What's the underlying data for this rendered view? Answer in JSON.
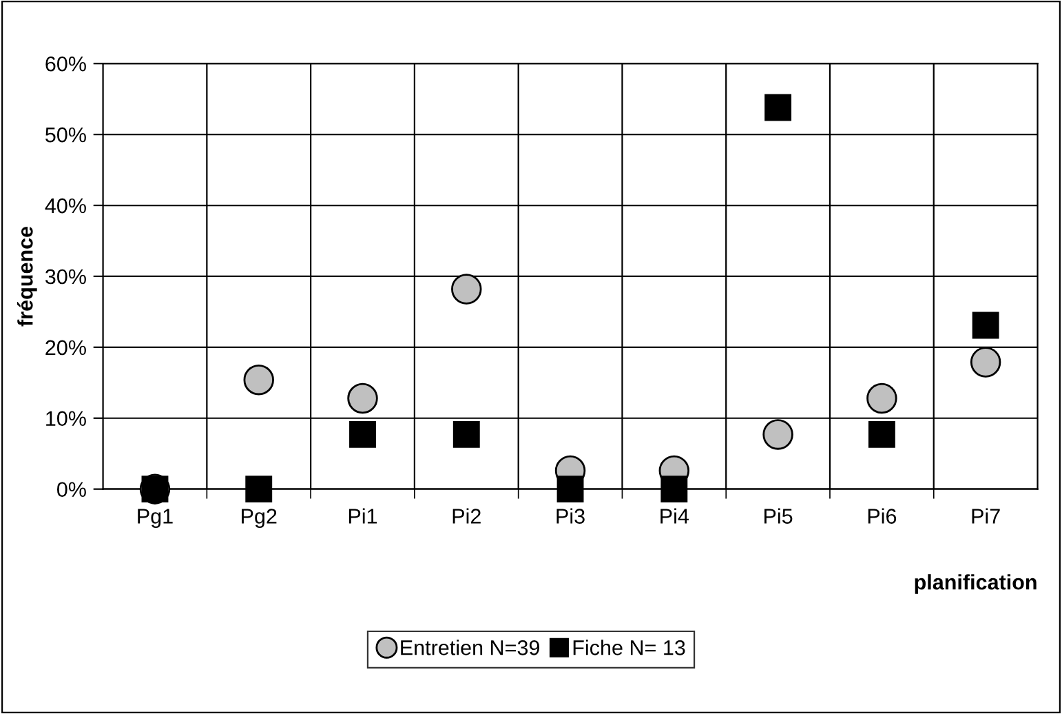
{
  "chart_data": {
    "type": "scatter",
    "xlabel": "planification",
    "ylabel": "fréquence",
    "categories": [
      "Pg1",
      "Pg2",
      "Pi1",
      "Pi2",
      "Pi3",
      "Pi4",
      "Pi5",
      "Pi6",
      "Pi7"
    ],
    "series": [
      {
        "name": "Entretien N=39",
        "color": "#c0c0c0",
        "marker": "circle",
        "values": [
          0,
          15.4,
          12.8,
          28.2,
          2.6,
          2.6,
          7.7,
          12.8,
          17.9
        ]
      },
      {
        "name": "Fiche N= 13",
        "color": "#000000",
        "marker": "square",
        "values": [
          0,
          0,
          7.7,
          7.7,
          0,
          0,
          53.8,
          7.7,
          23.1
        ]
      }
    ],
    "ylim": [
      0,
      60
    ],
    "yticks": [
      {
        "value": 0,
        "label": "0%"
      },
      {
        "value": 10,
        "label": "10%"
      },
      {
        "value": 20,
        "label": "20%"
      },
      {
        "value": 30,
        "label": "30%"
      },
      {
        "value": 40,
        "label": "40%"
      },
      {
        "value": 50,
        "label": "50%"
      },
      {
        "value": 60,
        "label": "60%"
      }
    ],
    "grid": true,
    "legend": "bottom"
  }
}
